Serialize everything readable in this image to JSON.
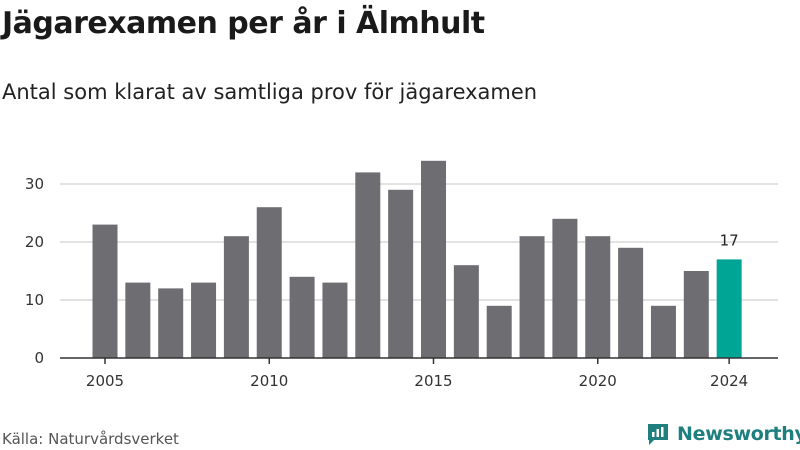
{
  "header": {
    "title": "Jägarexamen per år i Älmhult",
    "subtitle": "Antal som klarat av samtliga prov för jägarexamen"
  },
  "footer": {
    "source": "Källa: Naturvårdsverket",
    "brand": "Newsworthy",
    "brand_icon": "newsworthy-logo-icon"
  },
  "colors": {
    "bar": "#6e6d72",
    "highlight": "#00a595",
    "grid": "#d9d9d9",
    "axis": "#333333",
    "brand": "#1f7f7f"
  },
  "chart_data": {
    "type": "bar",
    "title": "Jägarexamen per år i Älmhult",
    "subtitle": "Antal som klarat av samtliga prov för jägarexamen",
    "xlabel": "",
    "ylabel": "",
    "categories": [
      2005,
      2006,
      2007,
      2008,
      2009,
      2010,
      2011,
      2012,
      2013,
      2014,
      2015,
      2016,
      2017,
      2018,
      2019,
      2020,
      2021,
      2022,
      2023,
      2024
    ],
    "values": [
      23,
      13,
      12,
      13,
      21,
      26,
      14,
      13,
      32,
      29,
      34,
      16,
      9,
      21,
      24,
      21,
      19,
      9,
      15,
      17
    ],
    "x_ticks": [
      2005,
      2010,
      2015,
      2020,
      2024
    ],
    "y_ticks": [
      0,
      10,
      20,
      30
    ],
    "ylim": [
      0,
      34
    ],
    "grid": true,
    "highlight": {
      "category": 2024,
      "label": "17"
    }
  }
}
